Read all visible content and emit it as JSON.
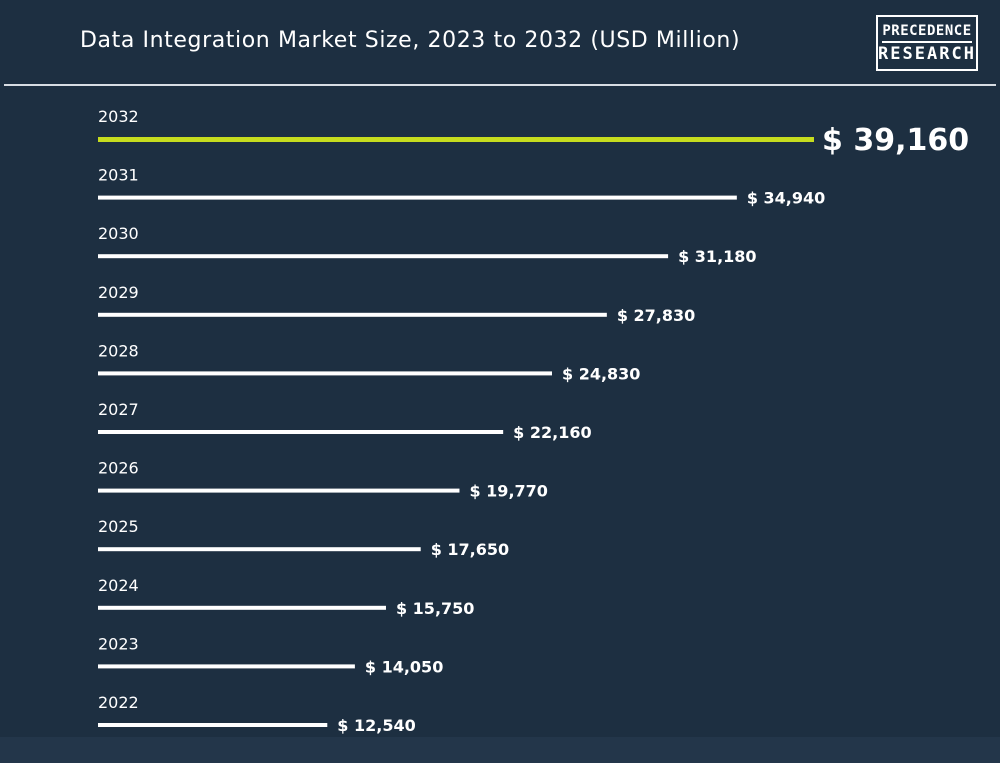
{
  "header": {
    "title": "Data Integration Market Size, 2023 to 2032 (USD Million)",
    "logo_line1": "PRECEDENCE",
    "logo_line2": "RESEARCH"
  },
  "colors": {
    "background": "#1d2f41",
    "bar": "#ffffff",
    "highlight_bar": "#c6dc1e",
    "text": "#ffffff"
  },
  "chart_data": {
    "type": "bar",
    "orientation": "horizontal",
    "title": "Data Integration Market Size, 2023 to 2032 (USD Million)",
    "categories": [
      "2032",
      "2031",
      "2030",
      "2029",
      "2028",
      "2027",
      "2026",
      "2025",
      "2024",
      "2023",
      "2022"
    ],
    "values": [
      39160,
      34940,
      31180,
      27830,
      24830,
      22160,
      19770,
      17650,
      15750,
      14050,
      12540
    ],
    "value_labels": [
      "$ 39,160",
      "$ 34,940",
      "$ 31,180",
      "$ 27,830",
      "$ 24,830",
      "$ 22,160",
      "$ 19,770",
      "$ 17,650",
      "$ 15,750",
      "$ 14,050",
      "$ 12,540"
    ],
    "highlight_category": "2032",
    "xlim": [
      0,
      39160
    ],
    "grid": false,
    "legend": "none"
  }
}
